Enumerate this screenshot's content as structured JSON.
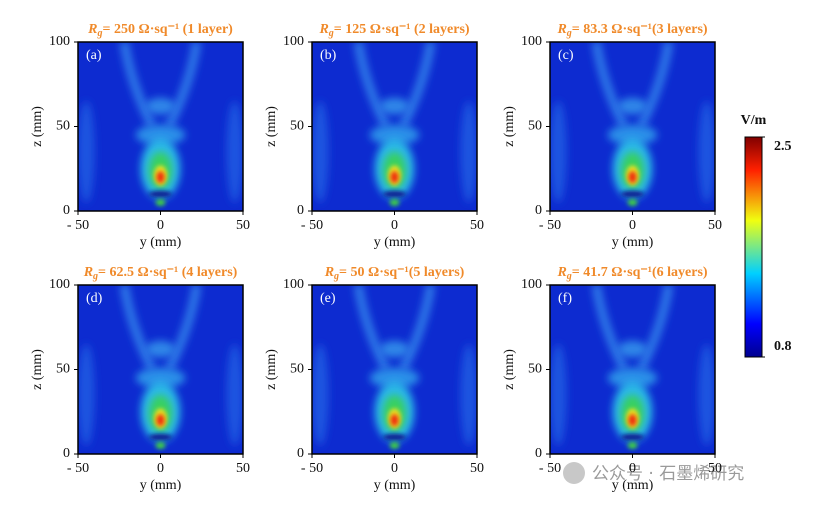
{
  "chart_data": [
    {
      "type": "heatmap",
      "title": {
        "symbol": "R",
        "subscript": "g",
        "text": "= 250 Ω·sq⁻¹ (1 layer)"
      },
      "panel_label": "(a)",
      "xlabel": "y (mm)",
      "ylabel": "z (mm)",
      "xlim": [
        -50,
        50
      ],
      "ylim": [
        0,
        100
      ],
      "xticks": [
        {
          "value": -50,
          "label": "- 50"
        },
        0,
        50
      ],
      "yticks": [
        0,
        50,
        100
      ]
    },
    {
      "type": "heatmap",
      "title": {
        "symbol": "R",
        "subscript": "g",
        "text": "= 125 Ω·sq⁻¹ (2 layers)"
      },
      "panel_label": "(b)",
      "xlabel": "y (mm)",
      "ylabel": "z (mm)",
      "xlim": [
        -50,
        50
      ],
      "ylim": [
        0,
        100
      ],
      "xticks": [
        {
          "value": -50,
          "label": "- 50"
        },
        0,
        50
      ],
      "yticks": [
        0,
        50,
        100
      ]
    },
    {
      "type": "heatmap",
      "title": {
        "symbol": "R",
        "subscript": "g",
        "text": "= 83.3 Ω·sq⁻¹(3 layers)"
      },
      "panel_label": "(c)",
      "xlabel": "y (mm)",
      "ylabel": "z (mm)",
      "xlim": [
        -50,
        50
      ],
      "ylim": [
        0,
        100
      ],
      "xticks": [
        {
          "value": -50,
          "label": "- 50"
        },
        0,
        50
      ],
      "yticks": [
        0,
        50,
        100
      ]
    },
    {
      "type": "heatmap",
      "title": {
        "symbol": "R",
        "subscript": "g",
        "text": "= 62.5 Ω·sq⁻¹ (4 layers)"
      },
      "panel_label": "(d)",
      "xlabel": "y (mm)",
      "ylabel": "z (mm)",
      "xlim": [
        -50,
        50
      ],
      "ylim": [
        0,
        100
      ],
      "xticks": [
        {
          "value": -50,
          "label": "- 50"
        },
        0,
        50
      ],
      "yticks": [
        0,
        50,
        100
      ]
    },
    {
      "type": "heatmap",
      "title": {
        "symbol": "R",
        "subscript": "g",
        "text": "= 50 Ω·sq⁻¹(5 layers)"
      },
      "panel_label": "(e)",
      "xlabel": "y (mm)",
      "ylabel": "z (mm)",
      "xlim": [
        -50,
        50
      ],
      "ylim": [
        0,
        100
      ],
      "xticks": [
        {
          "value": -50,
          "label": "- 50"
        },
        0,
        50
      ],
      "yticks": [
        0,
        50,
        100
      ]
    },
    {
      "type": "heatmap",
      "title": {
        "symbol": "R",
        "subscript": "g",
        "text": "= 41.7 Ω·sq⁻¹(6 layers)"
      },
      "panel_label": "(f)",
      "xlabel": "y (mm)",
      "ylabel": "z (mm)",
      "xlim": [
        -50,
        50
      ],
      "ylim": [
        0,
        100
      ],
      "xticks": [
        {
          "value": -50,
          "label": "- 50"
        },
        0,
        50
      ],
      "yticks": [
        0,
        50,
        100
      ]
    }
  ],
  "colorbar": {
    "label": "V/m",
    "lim": [
      0.8,
      2.5
    ],
    "ticks": [
      0.8,
      2.5
    ]
  },
  "watermark": "公众号 · 石墨烯研究"
}
